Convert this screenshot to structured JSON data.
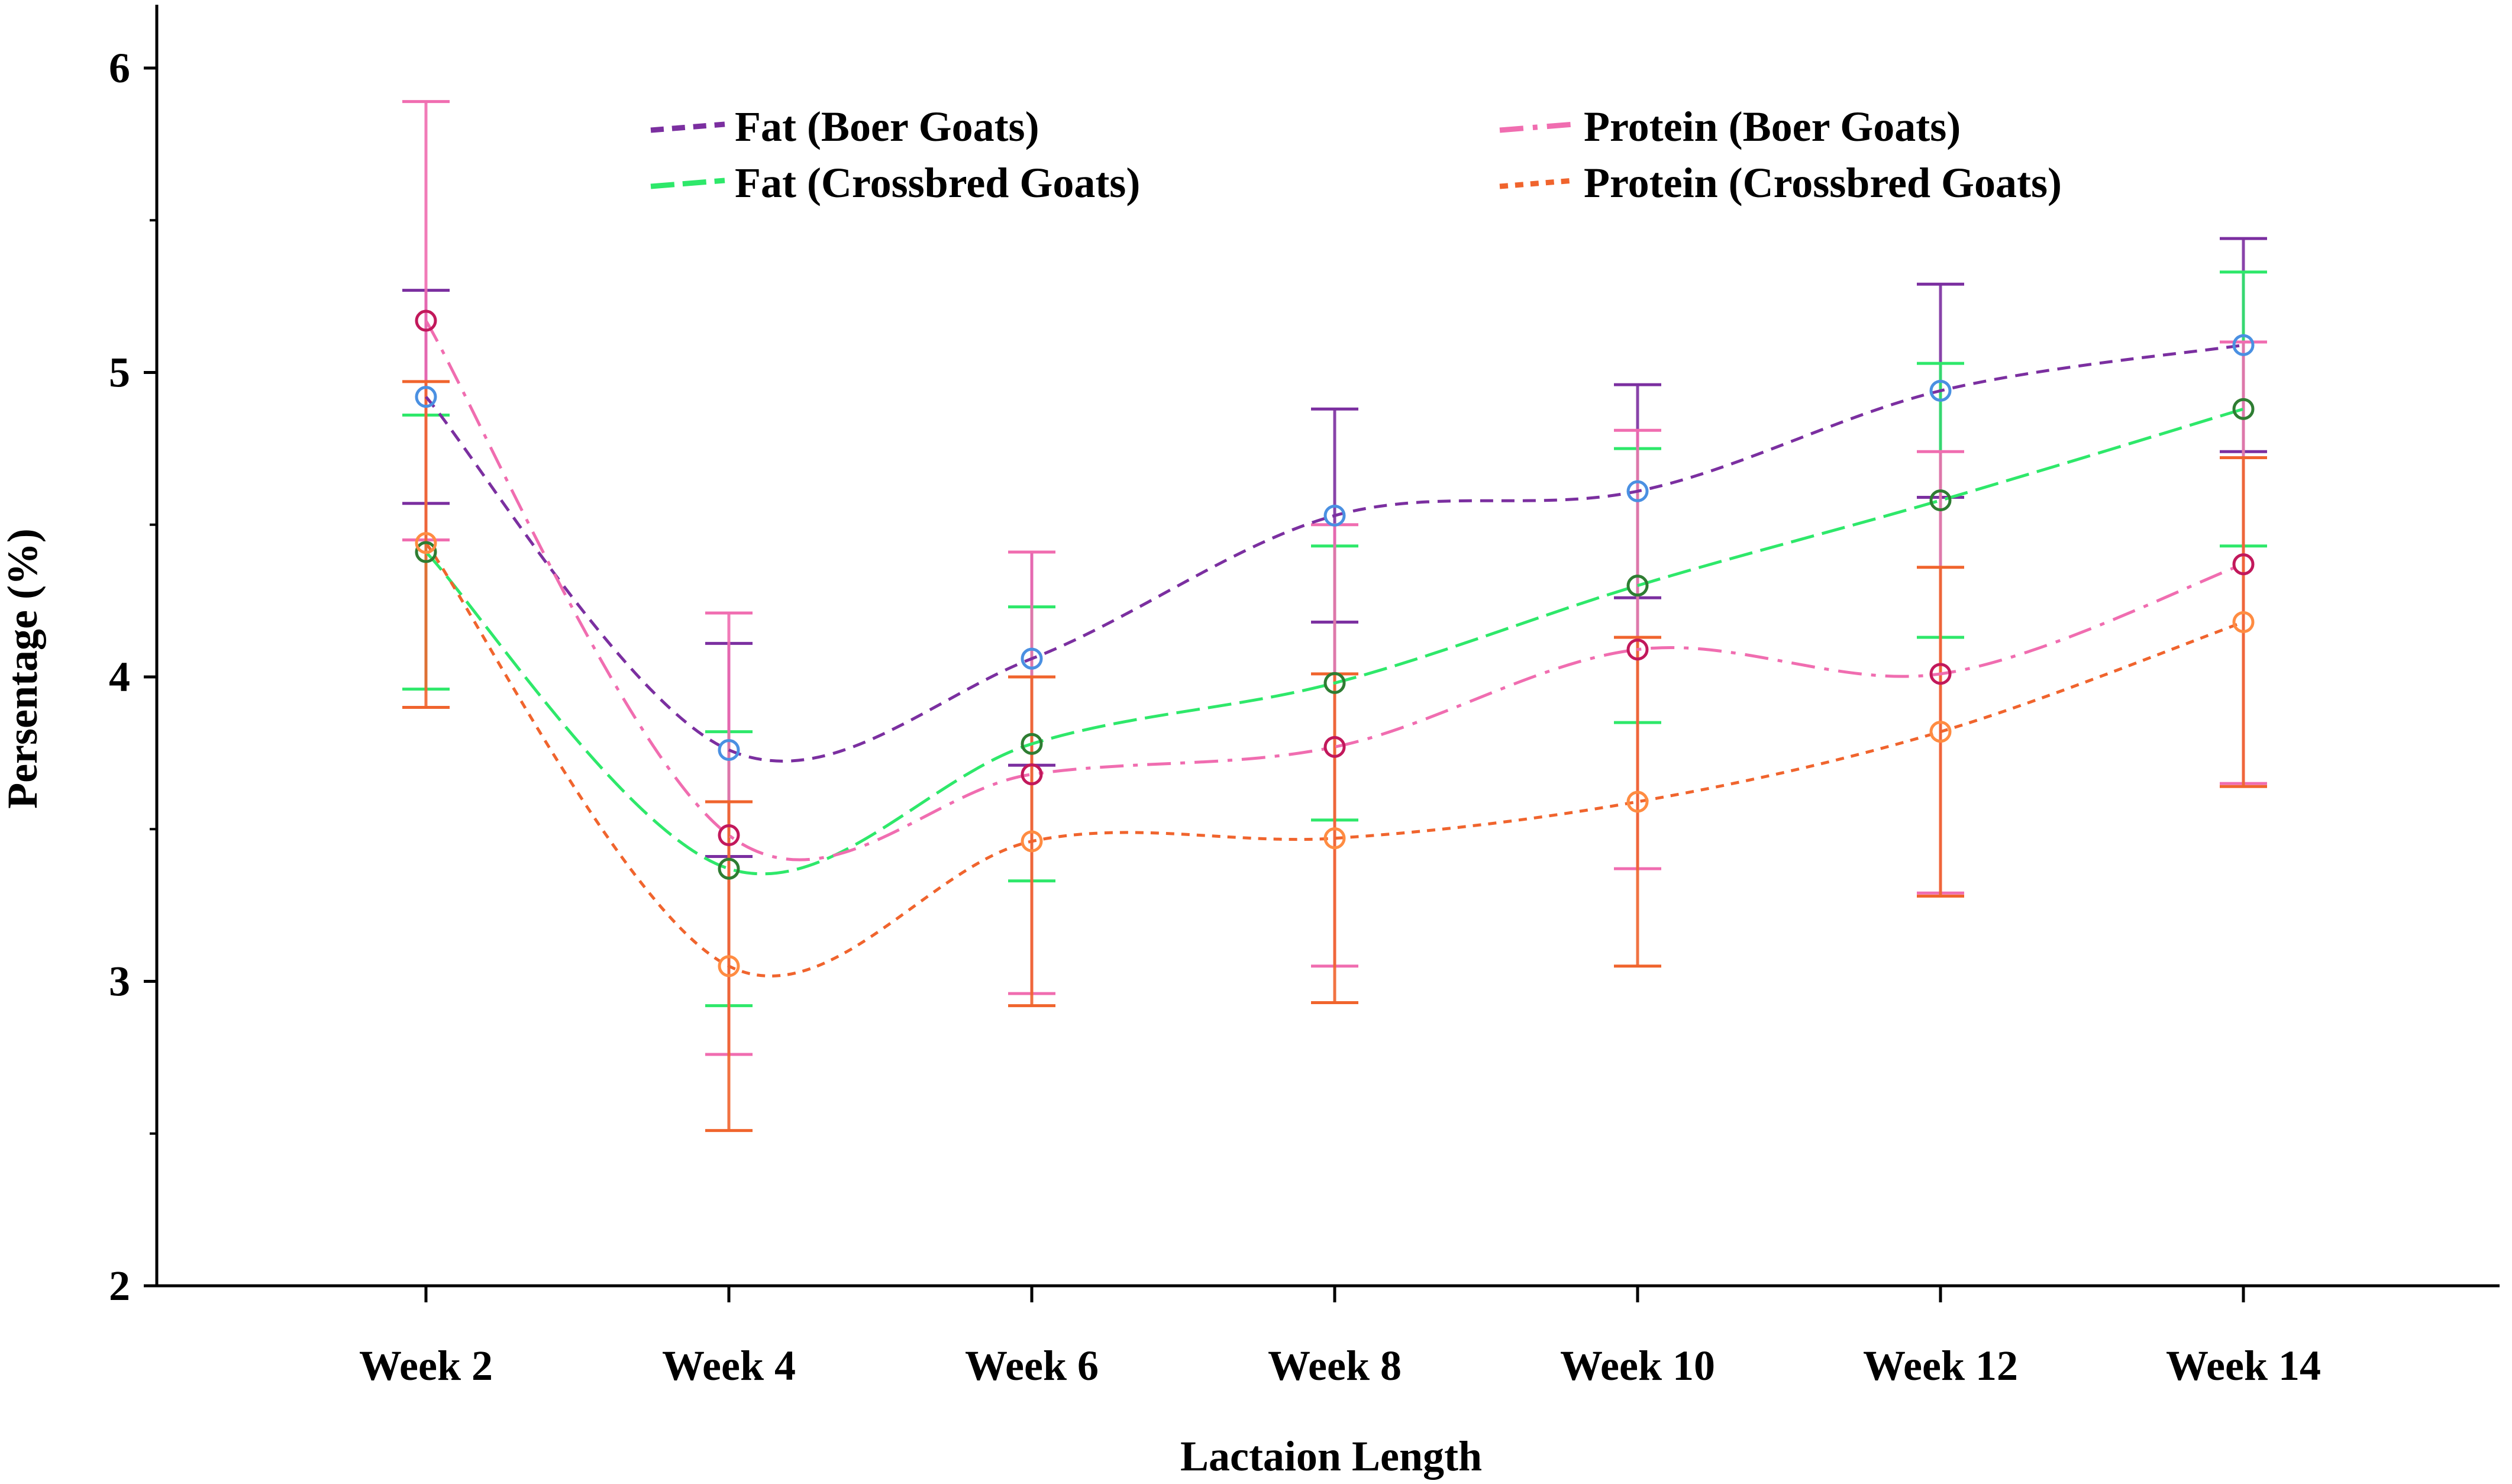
{
  "chart_data": {
    "type": "line",
    "title": "",
    "xlabel": "Lactaion Length",
    "ylabel": "Persentage (%)",
    "ylim": [
      2,
      6.2
    ],
    "yticks": [
      2,
      3,
      4,
      5,
      6
    ],
    "categories": [
      "Week 2",
      "Week 4",
      "Week 6",
      "Week 8",
      "Week 10",
      "Week 12",
      "Week 14"
    ],
    "legend_position": "top",
    "series": [
      {
        "name": "Fat (Boer Goats)",
        "color": "#7b2fa0",
        "marker_color": "#4a90e2",
        "dash": "dash",
        "values": [
          4.92,
          3.76,
          4.06,
          4.53,
          4.61,
          4.94,
          5.09
        ],
        "err_low": [
          4.57,
          3.41,
          3.71,
          4.18,
          4.26,
          4.59,
          4.74
        ],
        "err_high": [
          5.27,
          4.11,
          4.41,
          4.88,
          4.96,
          5.29,
          5.44
        ]
      },
      {
        "name": "Fat (Crossbred Goats)",
        "color": "#2ee86a",
        "marker_color": "#2e7d32",
        "dash": "longdash",
        "values": [
          4.41,
          3.37,
          3.78,
          3.98,
          4.3,
          4.58,
          4.88
        ],
        "err_low": [
          3.96,
          2.92,
          3.33,
          3.53,
          3.85,
          4.13,
          4.43
        ],
        "err_high": [
          4.86,
          3.82,
          4.23,
          4.43,
          4.75,
          5.03,
          5.33
        ]
      },
      {
        "name": "Protein (Boer Goats)",
        "color": "#f06db0",
        "marker_color": "#c2185b",
        "dash": "dashdot",
        "values": [
          5.17,
          3.48,
          3.68,
          3.77,
          4.09,
          4.01,
          4.37
        ],
        "err_low": [
          4.45,
          2.76,
          2.96,
          3.05,
          3.37,
          3.29,
          3.65
        ],
        "err_high": [
          5.89,
          4.21,
          4.41,
          4.5,
          4.81,
          4.74,
          5.1
        ]
      },
      {
        "name": "Protein (Crossbred Goats)",
        "color": "#f0642d",
        "marker_color": "#ff8c42",
        "dash": "dot",
        "values": [
          4.44,
          3.05,
          3.46,
          3.47,
          3.59,
          3.82,
          4.18
        ],
        "err_low": [
          3.9,
          2.51,
          2.92,
          2.93,
          3.05,
          3.28,
          3.64
        ],
        "err_high": [
          4.97,
          3.59,
          4.0,
          4.01,
          4.13,
          4.36,
          4.72
        ]
      }
    ]
  }
}
